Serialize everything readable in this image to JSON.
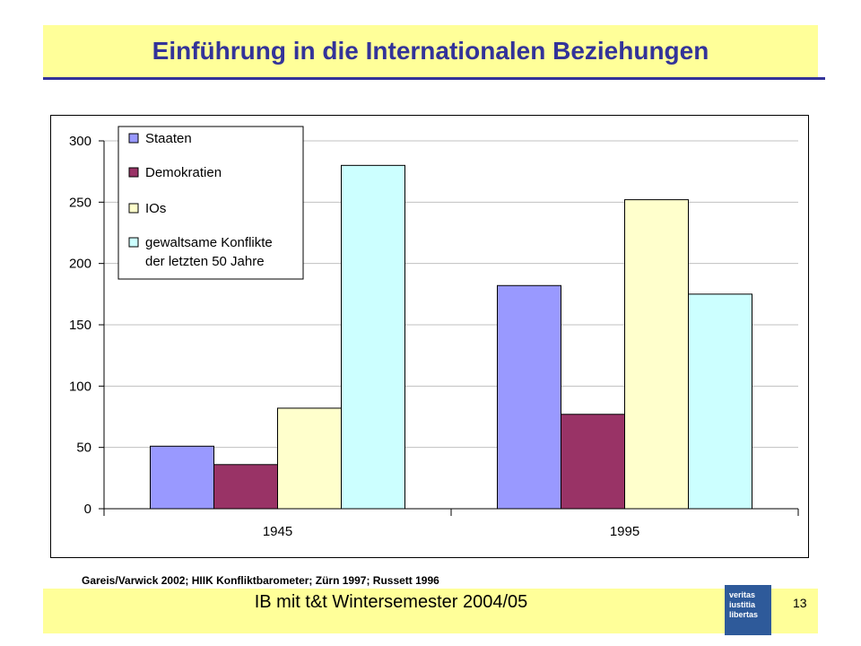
{
  "title": "Einführung in die Internationalen Beziehungen",
  "source": "Gareis/Varwick 2002; HIIK Konfliktbarometer; Zürn 1997; Russett 1996",
  "footer": {
    "text": "IB mit t&t  Wintersemester 2004/05",
    "page_number": "13"
  },
  "seal": {
    "lines": [
      "veritas",
      "iustitia",
      "libertas"
    ]
  },
  "colors": {
    "title": "#333399",
    "band": "#ffff99",
    "series": [
      "#9999ff",
      "#993366",
      "#ffffcc",
      "#ccffff"
    ],
    "grid": "#c0c0c0"
  },
  "chart_data": {
    "type": "bar",
    "categories": [
      "1945",
      "1995"
    ],
    "series": [
      {
        "name": "Staaten",
        "values": [
          51,
          182
        ]
      },
      {
        "name": "Demokratien",
        "values": [
          36,
          77
        ]
      },
      {
        "name": "IOs",
        "values": [
          82,
          252
        ]
      },
      {
        "name": "gewaltsame Konflikte der letzten 50 Jahre",
        "values": [
          280,
          175
        ]
      }
    ],
    "yticks": [
      0,
      50,
      100,
      150,
      200,
      250,
      300
    ],
    "ylim": [
      0,
      300
    ],
    "grid": true,
    "legend": "top-left"
  }
}
